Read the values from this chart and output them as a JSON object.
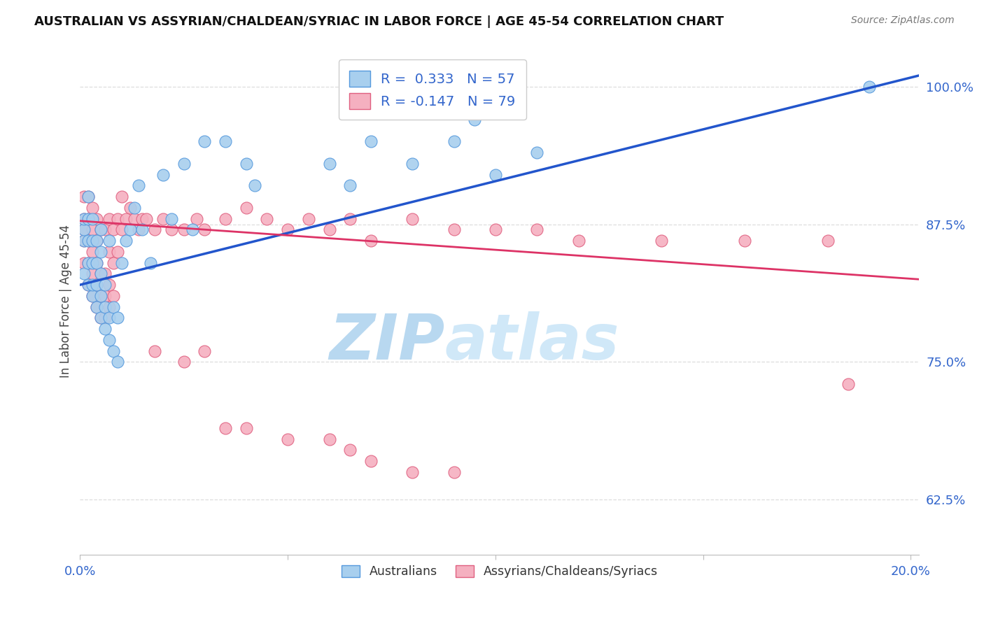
{
  "title": "AUSTRALIAN VS ASSYRIAN/CHALDEAN/SYRIAC IN LABOR FORCE | AGE 45-54 CORRELATION CHART",
  "source": "Source: ZipAtlas.com",
  "ylabel": "In Labor Force | Age 45-54",
  "yticks_pct": [
    62.5,
    75.0,
    87.5,
    100.0
  ],
  "xmin": 0.0,
  "xmax": 0.202,
  "ymin": 0.575,
  "ymax": 1.035,
  "legend_blue_r": "R =  0.333",
  "legend_blue_n": "N = 57",
  "legend_pink_r": "R = -0.147",
  "legend_pink_n": "N = 79",
  "blue_fill": "#A8CFEE",
  "blue_edge": "#5599DD",
  "pink_fill": "#F5B0C0",
  "pink_edge": "#E06080",
  "line_blue": "#2255CC",
  "line_pink": "#DD3366",
  "watermark_text": "ZIPatlas",
  "watermark_color": "#C8DFF0",
  "label_color": "#3366CC",
  "grid_color": "#DDDDDD",
  "title_color": "#111111",
  "source_color": "#777777",
  "blue_line_y0": 0.82,
  "blue_line_y1": 1.01,
  "pink_line_y0": 0.878,
  "pink_line_y1": 0.825,
  "blue_x": [
    0.001,
    0.001,
    0.001,
    0.001,
    0.002,
    0.002,
    0.002,
    0.002,
    0.002,
    0.003,
    0.003,
    0.003,
    0.003,
    0.003,
    0.004,
    0.004,
    0.004,
    0.004,
    0.005,
    0.005,
    0.005,
    0.005,
    0.005,
    0.006,
    0.006,
    0.006,
    0.007,
    0.007,
    0.007,
    0.008,
    0.008,
    0.009,
    0.009,
    0.01,
    0.011,
    0.012,
    0.013,
    0.014,
    0.015,
    0.017,
    0.02,
    0.022,
    0.025,
    0.027,
    0.03,
    0.035,
    0.04,
    0.042,
    0.06,
    0.065,
    0.07,
    0.08,
    0.09,
    0.095,
    0.1,
    0.11,
    0.19
  ],
  "blue_y": [
    0.86,
    0.87,
    0.88,
    0.83,
    0.82,
    0.84,
    0.86,
    0.88,
    0.9,
    0.81,
    0.82,
    0.84,
    0.86,
    0.88,
    0.8,
    0.82,
    0.84,
    0.86,
    0.79,
    0.81,
    0.83,
    0.85,
    0.87,
    0.78,
    0.8,
    0.82,
    0.77,
    0.79,
    0.86,
    0.76,
    0.8,
    0.75,
    0.79,
    0.84,
    0.86,
    0.87,
    0.89,
    0.91,
    0.87,
    0.84,
    0.92,
    0.88,
    0.93,
    0.87,
    0.95,
    0.95,
    0.93,
    0.91,
    0.93,
    0.91,
    0.95,
    0.93,
    0.95,
    0.97,
    0.92,
    0.94,
    1.0
  ],
  "pink_x": [
    0.001,
    0.001,
    0.001,
    0.001,
    0.001,
    0.002,
    0.002,
    0.002,
    0.002,
    0.002,
    0.003,
    0.003,
    0.003,
    0.003,
    0.003,
    0.004,
    0.004,
    0.004,
    0.004,
    0.004,
    0.005,
    0.005,
    0.005,
    0.005,
    0.006,
    0.006,
    0.006,
    0.006,
    0.007,
    0.007,
    0.007,
    0.007,
    0.008,
    0.008,
    0.008,
    0.009,
    0.009,
    0.01,
    0.01,
    0.011,
    0.012,
    0.013,
    0.014,
    0.015,
    0.016,
    0.018,
    0.02,
    0.022,
    0.025,
    0.028,
    0.03,
    0.035,
    0.04,
    0.045,
    0.05,
    0.055,
    0.06,
    0.065,
    0.07,
    0.08,
    0.09,
    0.1,
    0.11,
    0.12,
    0.14,
    0.16,
    0.18,
    0.185,
    0.018,
    0.025,
    0.03,
    0.035,
    0.04,
    0.05,
    0.06,
    0.065,
    0.07,
    0.08,
    0.09
  ],
  "pink_y": [
    0.86,
    0.87,
    0.88,
    0.84,
    0.9,
    0.82,
    0.84,
    0.86,
    0.88,
    0.9,
    0.81,
    0.83,
    0.85,
    0.87,
    0.89,
    0.8,
    0.82,
    0.84,
    0.86,
    0.88,
    0.79,
    0.81,
    0.83,
    0.87,
    0.79,
    0.81,
    0.83,
    0.87,
    0.8,
    0.82,
    0.85,
    0.88,
    0.81,
    0.84,
    0.87,
    0.85,
    0.88,
    0.87,
    0.9,
    0.88,
    0.89,
    0.88,
    0.87,
    0.88,
    0.88,
    0.87,
    0.88,
    0.87,
    0.87,
    0.88,
    0.87,
    0.88,
    0.89,
    0.88,
    0.87,
    0.88,
    0.87,
    0.88,
    0.86,
    0.88,
    0.87,
    0.87,
    0.87,
    0.86,
    0.86,
    0.86,
    0.86,
    0.73,
    0.76,
    0.75,
    0.76,
    0.69,
    0.69,
    0.68,
    0.68,
    0.67,
    0.66,
    0.65,
    0.65
  ]
}
